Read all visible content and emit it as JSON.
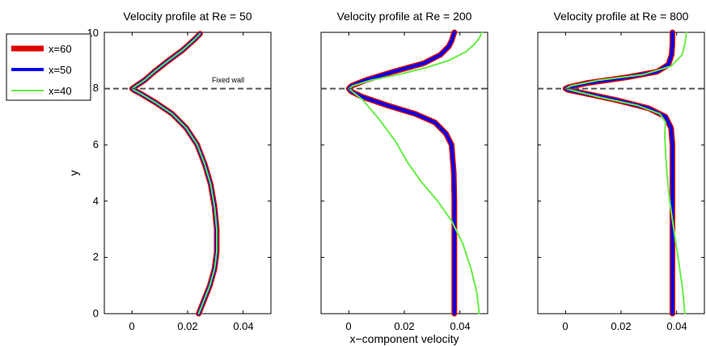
{
  "chart_data": [
    {
      "type": "line",
      "title": "Velocity profile at Re =  50",
      "xlabel": "",
      "ylabel": "y",
      "xlim": [
        -0.01,
        0.05
      ],
      "ylim": [
        0,
        10
      ],
      "xticks": [
        0,
        0.02,
        0.04
      ],
      "xtick_labels": [
        "0",
        "0.02",
        "0.04"
      ],
      "yticks": [
        0,
        2,
        4,
        6,
        8,
        10
      ],
      "ytick_labels": [
        "0",
        "2",
        "4",
        "6",
        "8",
        "10"
      ],
      "annotation": "Fixed wall",
      "wall_y": 8,
      "series": [
        {
          "name": "x=60",
          "color": "#dd0000",
          "width": 7,
          "x": [
            0.024,
            0.026,
            0.028,
            0.0297,
            0.0305,
            0.0305,
            0.0297,
            0.0283,
            0.0262,
            0.0235,
            0.0195,
            0.0145,
            0.0085,
            0.0035,
            0.0006,
            0.0,
            0.0015,
            0.0045,
            0.008,
            0.0125,
            0.018,
            0.0225,
            0.0245
          ],
          "y": [
            0,
            0.5,
            1,
            1.6,
            2.2,
            3,
            3.8,
            4.6,
            5.3,
            6,
            6.6,
            7.1,
            7.5,
            7.8,
            7.95,
            8.0,
            8.1,
            8.3,
            8.6,
            8.95,
            9.35,
            9.75,
            9.95
          ]
        },
        {
          "name": "x=50",
          "color": "#0000ee",
          "width": 4,
          "x": [
            0.024,
            0.026,
            0.028,
            0.0297,
            0.0305,
            0.0305,
            0.0297,
            0.0283,
            0.0262,
            0.0235,
            0.0195,
            0.0145,
            0.0085,
            0.0035,
            0.0006,
            0.0,
            0.0015,
            0.0045,
            0.008,
            0.0125,
            0.018,
            0.0225,
            0.0245
          ],
          "y": [
            0,
            0.5,
            1,
            1.6,
            2.2,
            3,
            3.8,
            4.6,
            5.3,
            6,
            6.6,
            7.1,
            7.5,
            7.8,
            7.95,
            8.0,
            8.1,
            8.3,
            8.6,
            8.95,
            9.35,
            9.75,
            9.95
          ]
        },
        {
          "name": "x=40",
          "color": "#66ee44",
          "width": 2,
          "x": [
            0.024,
            0.026,
            0.028,
            0.0297,
            0.0305,
            0.0305,
            0.0297,
            0.0283,
            0.0262,
            0.0235,
            0.0195,
            0.0145,
            0.0085,
            0.0035,
            0.0006,
            0.0,
            0.0015,
            0.0045,
            0.008,
            0.0125,
            0.018,
            0.0225,
            0.0245
          ],
          "y": [
            0,
            0.5,
            1,
            1.6,
            2.2,
            3,
            3.8,
            4.6,
            5.3,
            6,
            6.6,
            7.1,
            7.5,
            7.8,
            7.95,
            8.0,
            8.1,
            8.3,
            8.6,
            8.95,
            9.35,
            9.75,
            9.95
          ]
        }
      ]
    },
    {
      "type": "line",
      "title": "Velocity profile at Re = 200",
      "xlabel": "x−component velocity",
      "ylabel": "",
      "xlim": [
        -0.01,
        0.05
      ],
      "ylim": [
        0,
        10
      ],
      "xticks": [
        0,
        0.02,
        0.04
      ],
      "xtick_labels": [
        "0",
        "0.02",
        "0.04"
      ],
      "yticks": [
        0,
        2,
        4,
        6,
        8,
        10
      ],
      "ytick_labels": [],
      "series": [
        {
          "name": "x=60",
          "color": "#dd0000",
          "width": 7,
          "x": [
            0.038,
            0.038,
            0.038,
            0.038,
            0.038,
            0.0378,
            0.037,
            0.035,
            0.031,
            0.024,
            0.014,
            0.005,
            0.0008,
            0.0,
            0.001,
            0.006,
            0.016,
            0.027,
            0.033,
            0.036,
            0.037,
            0.0375,
            0.038
          ],
          "y": [
            0,
            1,
            2,
            3,
            4,
            5,
            6,
            6.4,
            6.8,
            7.1,
            7.4,
            7.7,
            7.9,
            8.0,
            8.1,
            8.3,
            8.6,
            8.9,
            9.2,
            9.5,
            9.7,
            9.85,
            10
          ]
        },
        {
          "name": "x=50",
          "color": "#0000ee",
          "width": 4,
          "x": [
            0.038,
            0.038,
            0.038,
            0.038,
            0.038,
            0.0378,
            0.037,
            0.035,
            0.031,
            0.024,
            0.014,
            0.005,
            0.0008,
            0.0,
            0.001,
            0.006,
            0.016,
            0.027,
            0.033,
            0.036,
            0.037,
            0.0375,
            0.038
          ],
          "y": [
            0,
            1,
            2,
            3,
            4,
            5,
            6,
            6.4,
            6.8,
            7.1,
            7.4,
            7.7,
            7.9,
            8.0,
            8.1,
            8.3,
            8.6,
            8.9,
            9.2,
            9.5,
            9.7,
            9.85,
            10
          ]
        },
        {
          "name": "x=40",
          "color": "#66ee44",
          "width": 2,
          "x": [
            0.047,
            0.046,
            0.044,
            0.041,
            0.037,
            0.032,
            0.026,
            0.021,
            0.017,
            0.011,
            0.005,
            0.0012,
            0.0,
            0.0015,
            0.008,
            0.018,
            0.028,
            0.036,
            0.042,
            0.045,
            0.047,
            0.048
          ],
          "y": [
            0,
            0.8,
            1.6,
            2.5,
            3.3,
            4.0,
            4.7,
            5.4,
            6.1,
            6.9,
            7.6,
            7.9,
            8.0,
            8.1,
            8.3,
            8.5,
            8.75,
            9.0,
            9.3,
            9.55,
            9.8,
            10
          ]
        }
      ]
    },
    {
      "type": "line",
      "title": "Velocity profile at Re = 800",
      "xlabel": "",
      "ylabel": "",
      "xlim": [
        -0.01,
        0.05
      ],
      "ylim": [
        0,
        10
      ],
      "xticks": [
        0,
        0.02,
        0.04
      ],
      "xtick_labels": [
        "0",
        "0.02",
        "0.04"
      ],
      "yticks": [
        0,
        2,
        4,
        6,
        8,
        10
      ],
      "ytick_labels": [],
      "series": [
        {
          "name": "x=60",
          "color": "#dd0000",
          "width": 7,
          "x": [
            0.0385,
            0.0385,
            0.0385,
            0.0385,
            0.0385,
            0.0385,
            0.0385,
            0.038,
            0.036,
            0.03,
            0.018,
            0.006,
            0.001,
            0.0,
            0.001,
            0.008,
            0.022,
            0.033,
            0.037,
            0.0382,
            0.0385,
            0.0385
          ],
          "y": [
            0,
            1,
            2,
            3,
            4,
            5,
            6,
            6.6,
            7.0,
            7.3,
            7.6,
            7.85,
            7.95,
            8.0,
            8.05,
            8.2,
            8.4,
            8.6,
            8.85,
            9.2,
            9.6,
            10
          ]
        },
        {
          "name": "x=50",
          "color": "#0000ee",
          "width": 4,
          "x": [
            0.0385,
            0.0385,
            0.0385,
            0.0385,
            0.0385,
            0.0385,
            0.0385,
            0.038,
            0.036,
            0.03,
            0.018,
            0.006,
            0.001,
            0.0,
            0.001,
            0.008,
            0.022,
            0.033,
            0.037,
            0.0382,
            0.0385,
            0.0385
          ],
          "y": [
            0,
            1,
            2,
            3,
            4,
            5,
            6,
            6.6,
            7.0,
            7.3,
            7.6,
            7.85,
            7.95,
            8.0,
            8.05,
            8.2,
            8.4,
            8.6,
            8.85,
            9.2,
            9.6,
            10
          ]
        },
        {
          "name": "x=40",
          "color": "#66ee44",
          "width": 2,
          "x": [
            0.043,
            0.042,
            0.0405,
            0.039,
            0.0375,
            0.0365,
            0.036,
            0.0358,
            0.0358,
            0.036,
            0.034,
            0.026,
            0.012,
            0.003,
            0.0,
            0.002,
            0.012,
            0.028,
            0.038,
            0.042,
            0.043,
            0.0435
          ],
          "y": [
            0,
            1,
            2,
            3,
            4,
            5,
            5.8,
            6.2,
            6.5,
            6.8,
            7.1,
            7.4,
            7.7,
            7.92,
            8.0,
            8.1,
            8.3,
            8.5,
            8.8,
            9.2,
            9.6,
            10
          ]
        }
      ]
    }
  ],
  "legend": {
    "placement": "outside-top-left",
    "entries": [
      {
        "label": "x=60",
        "color": "#dd0000",
        "width": 7
      },
      {
        "label": "x=50",
        "color": "#0000ee",
        "width": 4
      },
      {
        "label": "x=40",
        "color": "#66ee44",
        "width": 2
      }
    ]
  }
}
